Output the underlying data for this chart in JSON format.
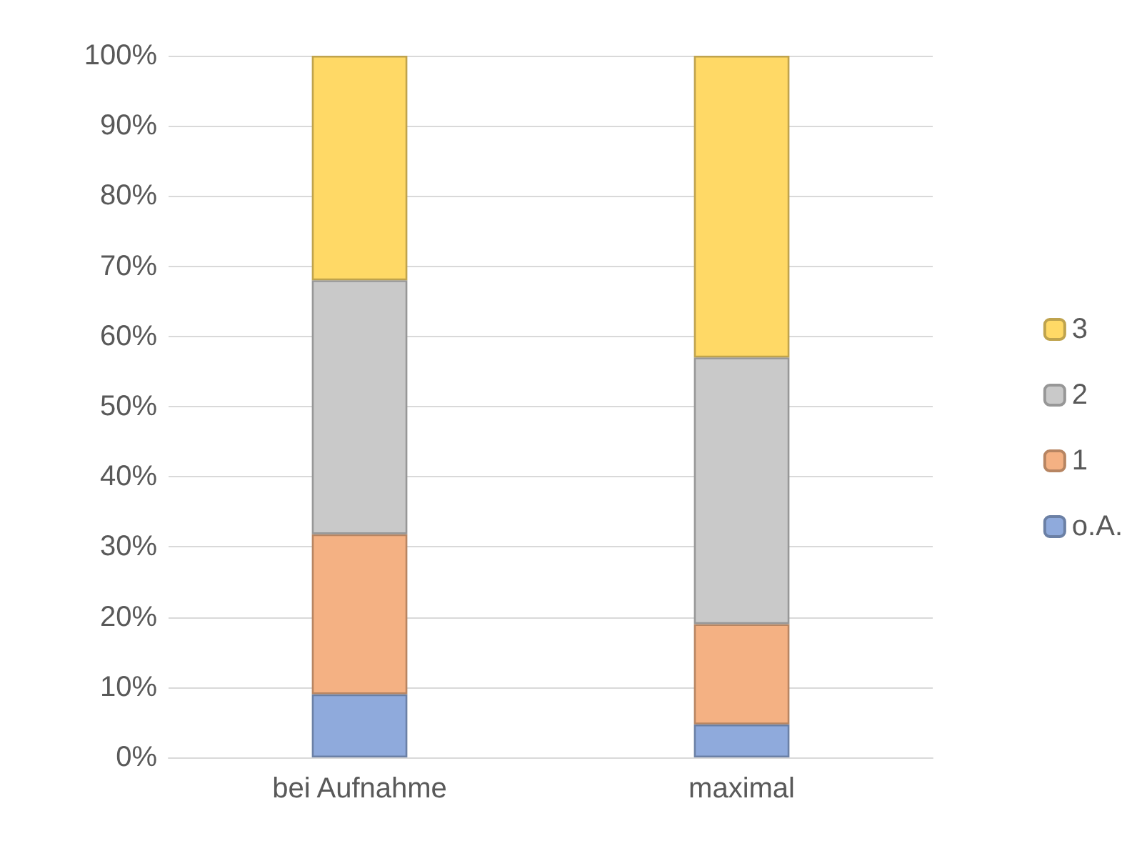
{
  "chart_data": {
    "type": "bar",
    "stacked": true,
    "categories": [
      "bei Aufnahme",
      "maximal"
    ],
    "series": [
      {
        "name": "o.A.",
        "color": "#8faadc",
        "values": [
          9,
          4.7
        ]
      },
      {
        "name": "1",
        "color": "#f4b183",
        "values": [
          22.8,
          14.3
        ]
      },
      {
        "name": "2",
        "color": "#c9c9c9",
        "values": [
          36.2,
          38
        ]
      },
      {
        "name": "3",
        "color": "#ffd966",
        "values": [
          32,
          43
        ]
      }
    ],
    "ylim": [
      0,
      100
    ],
    "yticks": [
      {
        "value": 0,
        "label": "0%"
      },
      {
        "value": 10,
        "label": "10%"
      },
      {
        "value": 20,
        "label": "20%"
      },
      {
        "value": 30,
        "label": "30%"
      },
      {
        "value": 40,
        "label": "40%"
      },
      {
        "value": 50,
        "label": "50%"
      },
      {
        "value": 60,
        "label": "60%"
      },
      {
        "value": 70,
        "label": "70%"
      },
      {
        "value": 80,
        "label": "80%"
      },
      {
        "value": 90,
        "label": "90%"
      },
      {
        "value": 100,
        "label": "100%"
      }
    ],
    "grid": "y",
    "legend": "right"
  }
}
